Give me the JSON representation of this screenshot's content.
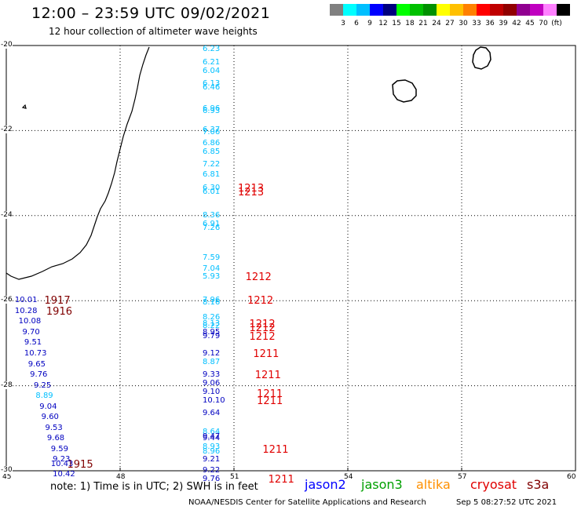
{
  "header": {
    "title": "12:00 – 23:59 UTC 09/02/2021",
    "subtitle": "12 hour collection of altimeter wave heights"
  },
  "colorscale": {
    "colors": [
      "#808080",
      "#00ffff",
      "#00bfff",
      "#0000ff",
      "#00007f",
      "#00ff00",
      "#00c000",
      "#009000",
      "#ffff00",
      "#ffc000",
      "#ff8000",
      "#ff0000",
      "#c00000",
      "#900000",
      "#900090",
      "#c000c0",
      "#ff80ff",
      "#000000"
    ],
    "labels": [
      "3",
      "6",
      "9",
      "12",
      "15",
      "18",
      "21",
      "24",
      "27",
      "30",
      "33",
      "36",
      "39",
      "42",
      "45",
      "70"
    ],
    "unit": "(ft)"
  },
  "map": {
    "lon_range": [
      45,
      60
    ],
    "lat_range": [
      -30,
      -20
    ],
    "x_ticks": [
      "45",
      "48",
      "51",
      "54",
      "57",
      "60"
    ],
    "y_ticks": [
      "-20",
      "-22",
      "-24",
      "-26",
      "-28",
      "-30"
    ]
  },
  "obs_colors": {
    "cyan": "#00bfff",
    "blue": "#0000c0",
    "red": "#e00000",
    "maroon": "#800000"
  },
  "observations": [
    {
      "lon": 51.0,
      "lat": -20.1,
      "v": "6.23",
      "c": "cyan"
    },
    {
      "lon": 51.0,
      "lat": -20.4,
      "v": "6.21",
      "c": "cyan"
    },
    {
      "lon": 51.0,
      "lat": -20.6,
      "v": "6.04",
      "c": "cyan"
    },
    {
      "lon": 51.0,
      "lat": -20.9,
      "v": "6.13",
      "c": "cyan"
    },
    {
      "lon": 51.0,
      "lat": -21.0,
      "v": "6.46",
      "c": "cyan"
    },
    {
      "lon": 51.0,
      "lat": -21.5,
      "v": "6.96",
      "c": "cyan"
    },
    {
      "lon": 51.0,
      "lat": -21.55,
      "v": "6.93",
      "c": "cyan"
    },
    {
      "lon": 51.0,
      "lat": -22.0,
      "v": "6.37",
      "c": "cyan"
    },
    {
      "lon": 51.0,
      "lat": -22.05,
      "v": "7.06",
      "c": "cyan"
    },
    {
      "lon": 51.0,
      "lat": -22.3,
      "v": "6.86",
      "c": "cyan"
    },
    {
      "lon": 51.0,
      "lat": -22.5,
      "v": "6.85",
      "c": "cyan"
    },
    {
      "lon": 51.0,
      "lat": -22.8,
      "v": "7.22",
      "c": "cyan"
    },
    {
      "lon": 51.0,
      "lat": -23.05,
      "v": "6.81",
      "c": "cyan"
    },
    {
      "lon": 51.0,
      "lat": -23.35,
      "v": "6.30",
      "c": "cyan"
    },
    {
      "lon": 51.0,
      "lat": -23.45,
      "v": "6.01",
      "c": "cyan"
    },
    {
      "lon": 51.0,
      "lat": -24.0,
      "v": "8.36",
      "c": "cyan"
    },
    {
      "lon": 51.0,
      "lat": -24.2,
      "v": "6.91",
      "c": "cyan"
    },
    {
      "lon": 51.0,
      "lat": -24.3,
      "v": "7.26",
      "c": "cyan"
    },
    {
      "lon": 51.0,
      "lat": -25.0,
      "v": "7.59",
      "c": "cyan"
    },
    {
      "lon": 51.0,
      "lat": -25.25,
      "v": "7.04",
      "c": "cyan"
    },
    {
      "lon": 51.0,
      "lat": -25.45,
      "v": "5.93",
      "c": "cyan"
    },
    {
      "lon": 51.0,
      "lat": -26.0,
      "v": "7.96",
      "c": "cyan"
    },
    {
      "lon": 51.0,
      "lat": -26.05,
      "v": "8.16",
      "c": "cyan"
    },
    {
      "lon": 51.0,
      "lat": -26.4,
      "v": "8.26",
      "c": "cyan"
    },
    {
      "lon": 51.0,
      "lat": -26.55,
      "v": "8.13",
      "c": "cyan"
    },
    {
      "lon": 51.0,
      "lat": -26.6,
      "v": "8.22",
      "c": "cyan"
    },
    {
      "lon": 51.0,
      "lat": -26.75,
      "v": "8.95",
      "c": "blue"
    },
    {
      "lon": 51.0,
      "lat": -26.85,
      "v": "9.79",
      "c": "blue"
    },
    {
      "lon": 51.0,
      "lat": -27.25,
      "v": "9.12",
      "c": "blue"
    },
    {
      "lon": 51.0,
      "lat": -27.45,
      "v": "8.87",
      "c": "cyan"
    },
    {
      "lon": 51.0,
      "lat": -27.75,
      "v": "9.33",
      "c": "blue"
    },
    {
      "lon": 51.0,
      "lat": -27.95,
      "v": "9.06",
      "c": "blue"
    },
    {
      "lon": 51.0,
      "lat": -28.15,
      "v": "9.10",
      "c": "blue"
    },
    {
      "lon": 51.0,
      "lat": -28.35,
      "v": "10.10",
      "c": "blue"
    },
    {
      "lon": 51.0,
      "lat": -28.65,
      "v": "9.64",
      "c": "blue"
    },
    {
      "lon": 51.0,
      "lat": -29.1,
      "v": "8.64",
      "c": "cyan"
    },
    {
      "lon": 51.0,
      "lat": -29.2,
      "v": "9.47",
      "c": "blue"
    },
    {
      "lon": 51.0,
      "lat": -29.25,
      "v": "9.44",
      "c": "blue"
    },
    {
      "lon": 51.0,
      "lat": -29.45,
      "v": "8.93",
      "c": "cyan"
    },
    {
      "lon": 51.0,
      "lat": -29.55,
      "v": "8.96",
      "c": "cyan"
    },
    {
      "lon": 51.0,
      "lat": -29.75,
      "v": "9.21",
      "c": "blue"
    },
    {
      "lon": 51.0,
      "lat": -30.0,
      "v": "9.22",
      "c": "blue"
    },
    {
      "lon": 51.0,
      "lat": -30.2,
      "v": "9.76",
      "c": "blue"
    },
    {
      "lon": 45.1,
      "lat": -26.0,
      "v": "10.01",
      "c": "blue"
    },
    {
      "lon": 45.1,
      "lat": -26.25,
      "v": "10.28",
      "c": "blue"
    },
    {
      "lon": 45.2,
      "lat": -26.5,
      "v": "10.08",
      "c": "blue"
    },
    {
      "lon": 45.3,
      "lat": -26.75,
      "v": "9.70",
      "c": "blue"
    },
    {
      "lon": 45.35,
      "lat": -27.0,
      "v": "9.51",
      "c": "blue"
    },
    {
      "lon": 45.35,
      "lat": -27.25,
      "v": "10.73",
      "c": "blue"
    },
    {
      "lon": 45.45,
      "lat": -27.5,
      "v": "9.65",
      "c": "blue"
    },
    {
      "lon": 45.5,
      "lat": -27.75,
      "v": "9.76",
      "c": "blue"
    },
    {
      "lon": 45.6,
      "lat": -28.0,
      "v": "9.25",
      "c": "blue"
    },
    {
      "lon": 45.65,
      "lat": -28.25,
      "v": "8.89",
      "c": "cyan"
    },
    {
      "lon": 45.75,
      "lat": -28.5,
      "v": "9.04",
      "c": "blue"
    },
    {
      "lon": 45.8,
      "lat": -28.75,
      "v": "9.60",
      "c": "blue"
    },
    {
      "lon": 45.9,
      "lat": -29.0,
      "v": "9.53",
      "c": "blue"
    },
    {
      "lon": 45.95,
      "lat": -29.25,
      "v": "9.68",
      "c": "blue"
    },
    {
      "lon": 46.05,
      "lat": -29.5,
      "v": "9.59",
      "c": "blue"
    },
    {
      "lon": 46.1,
      "lat": -29.75,
      "v": "9.23",
      "c": "blue"
    },
    {
      "lon": 46.05,
      "lat": -29.85,
      "v": "10.43",
      "c": "blue"
    },
    {
      "lon": 46.1,
      "lat": -30.1,
      "v": "10.42",
      "c": "blue"
    }
  ],
  "passes": [
    {
      "lon": 51.0,
      "lat": -23.35,
      "t": "1213",
      "c": "red"
    },
    {
      "lon": 51.0,
      "lat": -23.45,
      "t": "1213",
      "c": "red"
    },
    {
      "lon": 51.2,
      "lat": -25.45,
      "t": "1212",
      "c": "red"
    },
    {
      "lon": 51.25,
      "lat": -26.0,
      "t": "1212",
      "c": "red"
    },
    {
      "lon": 51.3,
      "lat": -26.55,
      "t": "1212",
      "c": "red"
    },
    {
      "lon": 51.3,
      "lat": -26.65,
      "t": "1212",
      "c": "red"
    },
    {
      "lon": 51.3,
      "lat": -26.85,
      "t": "1212",
      "c": "red"
    },
    {
      "lon": 51.4,
      "lat": -27.25,
      "t": "1211",
      "c": "red"
    },
    {
      "lon": 51.45,
      "lat": -27.75,
      "t": "1211",
      "c": "red"
    },
    {
      "lon": 51.5,
      "lat": -28.2,
      "t": "1211",
      "c": "red"
    },
    {
      "lon": 51.5,
      "lat": -28.35,
      "t": "1211",
      "c": "red"
    },
    {
      "lon": 51.65,
      "lat": -29.5,
      "t": "1211",
      "c": "red"
    },
    {
      "lon": 51.8,
      "lat": -30.2,
      "t": "1211",
      "c": "red"
    },
    {
      "lon": 45.9,
      "lat": -26.0,
      "t": "1917",
      "c": "maroon"
    },
    {
      "lon": 45.95,
      "lat": -26.25,
      "t": "1916",
      "c": "maroon"
    },
    {
      "lon": 46.5,
      "lat": -29.85,
      "t": "1915",
      "c": "maroon"
    }
  ],
  "footer": {
    "note": "note: 1) Time is in UTC; 2) SWH is in feet",
    "satellites": [
      {
        "name": "jason2",
        "color": "#0000ff"
      },
      {
        "name": "jason3",
        "color": "#00a000"
      },
      {
        "name": "altika",
        "color": "#ff9000"
      },
      {
        "name": "cryosat",
        "color": "#e00000"
      },
      {
        "name": "s3a",
        "color": "#800000"
      }
    ],
    "credit": "NOAA/NESDIS Center for Satellite Applications and Research",
    "timestamp": "Sep  5 08:27:52 UTC 2021"
  }
}
